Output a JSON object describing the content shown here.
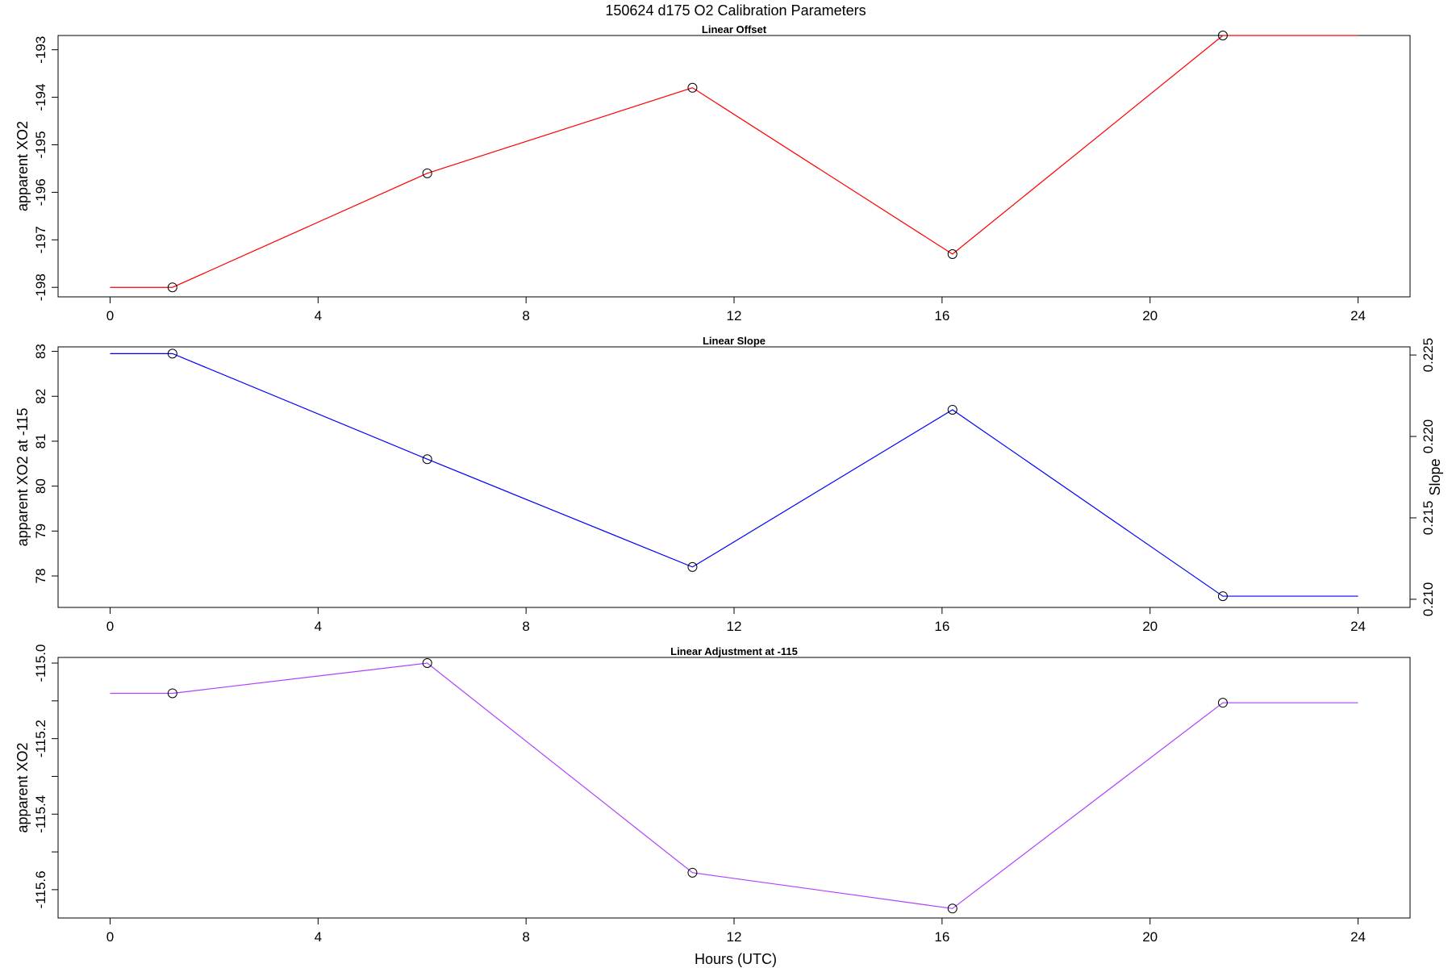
{
  "title": "150624   d175   O2 Calibration Parameters",
  "xlabel": "Hours (UTC)",
  "chart_data": [
    {
      "type": "line",
      "title": "Linear Offset",
      "ylabel": "apparent XO2",
      "color": "#ff0000",
      "xlim": [
        -1.0,
        25.0
      ],
      "ylim": [
        -198.2,
        -192.7
      ],
      "xticks": [
        0,
        4,
        8,
        12,
        16,
        20,
        24
      ],
      "xtick_labels": [
        "0",
        "4",
        "8",
        "12",
        "16",
        "20",
        "24"
      ],
      "yticks": [
        -198,
        -197,
        -196,
        -195,
        -194,
        -193
      ],
      "ytick_labels": [
        "-198",
        "-197",
        "-196",
        "-195",
        "-194",
        "-193"
      ],
      "points": {
        "x": [
          1.2,
          6.1,
          11.2,
          16.2,
          21.4
        ],
        "y": [
          -198.0,
          -195.6,
          -193.8,
          -197.3,
          -192.7
        ]
      },
      "line": {
        "x": [
          0.0,
          1.2,
          6.1,
          11.2,
          16.2,
          21.4,
          24.0
        ],
        "y": [
          -198.0,
          -198.0,
          -195.6,
          -193.8,
          -197.3,
          -192.7,
          -192.7
        ]
      }
    },
    {
      "type": "line",
      "title": "Linear Slope",
      "ylabel": "apparent XO2 at -115",
      "y2label": "Slope",
      "color": "#0000ff",
      "xlim": [
        -1.0,
        25.0
      ],
      "ylim": [
        77.3,
        83.1
      ],
      "y2lim": [
        0.2095,
        0.2255
      ],
      "xticks": [
        0,
        4,
        8,
        12,
        16,
        20,
        24
      ],
      "xtick_labels": [
        "0",
        "4",
        "8",
        "12",
        "16",
        "20",
        "24"
      ],
      "yticks": [
        78,
        79,
        80,
        81,
        82,
        83
      ],
      "ytick_labels": [
        "78",
        "79",
        "80",
        "81",
        "82",
        "83"
      ],
      "y2ticks": [
        0.21,
        0.215,
        0.22,
        0.225
      ],
      "y2tick_labels": [
        "0.210",
        "0.215",
        "0.220",
        "0.225"
      ],
      "points": {
        "x": [
          1.2,
          6.1,
          11.2,
          16.2,
          21.4
        ],
        "y": [
          82.95,
          80.6,
          78.2,
          81.7,
          77.55
        ]
      },
      "line": {
        "x": [
          0.0,
          1.2,
          6.1,
          11.2,
          16.2,
          21.4,
          24.0
        ],
        "y": [
          82.95,
          82.95,
          80.6,
          78.2,
          81.7,
          77.55,
          77.55
        ]
      }
    },
    {
      "type": "line",
      "title": "Linear Adjustment at -115",
      "ylabel": "apparent XO2",
      "color": "#b040ff",
      "xlim": [
        -1.0,
        25.0
      ],
      "ylim": [
        -115.675,
        -114.985
      ],
      "xticks": [
        0,
        4,
        8,
        12,
        16,
        20,
        24
      ],
      "xtick_labels": [
        "0",
        "4",
        "8",
        "12",
        "16",
        "20",
        "24"
      ],
      "yticks": [
        -115.6,
        -115.5,
        -115.4,
        -115.3,
        -115.2,
        -115.1,
        -115.0
      ],
      "ytick_labels": [
        "-115.6",
        "",
        "-115.4",
        "",
        "-115.2",
        "",
        "-115.0"
      ],
      "points": {
        "x": [
          1.2,
          6.1,
          11.2,
          16.2,
          21.4
        ],
        "y": [
          -115.08,
          -115.0,
          -115.555,
          -115.65,
          -115.105
        ]
      },
      "line": {
        "x": [
          0.0,
          1.2,
          6.1,
          11.2,
          16.2,
          21.4,
          24.0
        ],
        "y": [
          -115.08,
          -115.08,
          -115.0,
          -115.555,
          -115.65,
          -115.105,
          -115.105
        ]
      }
    }
  ]
}
